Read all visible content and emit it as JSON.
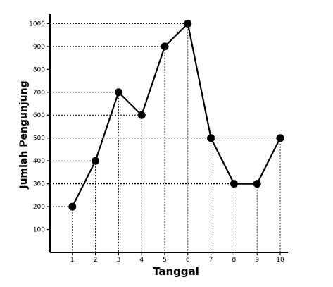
{
  "chart_data": {
    "type": "line",
    "title": "",
    "xlabel": "Tanggal",
    "ylabel": "Jumlah Pengunjung",
    "x": [
      1,
      2,
      3,
      4,
      5,
      6,
      7,
      8,
      9,
      10
    ],
    "xticks": [
      "1",
      "2",
      "3",
      "4",
      "5",
      "6",
      "7",
      "8",
      "9",
      "10"
    ],
    "yticks": [
      "100",
      "200",
      "300",
      "400",
      "500",
      "600",
      "700",
      "800",
      "900",
      "1000"
    ],
    "series": [
      {
        "values": [
          200,
          400,
          700,
          600,
          900,
          1000,
          500,
          300,
          300,
          500
        ]
      }
    ],
    "ylim": [
      0,
      1000
    ],
    "grid": false,
    "dotted_guides": true,
    "line_color": "#000000",
    "marker_color": "#000000"
  }
}
